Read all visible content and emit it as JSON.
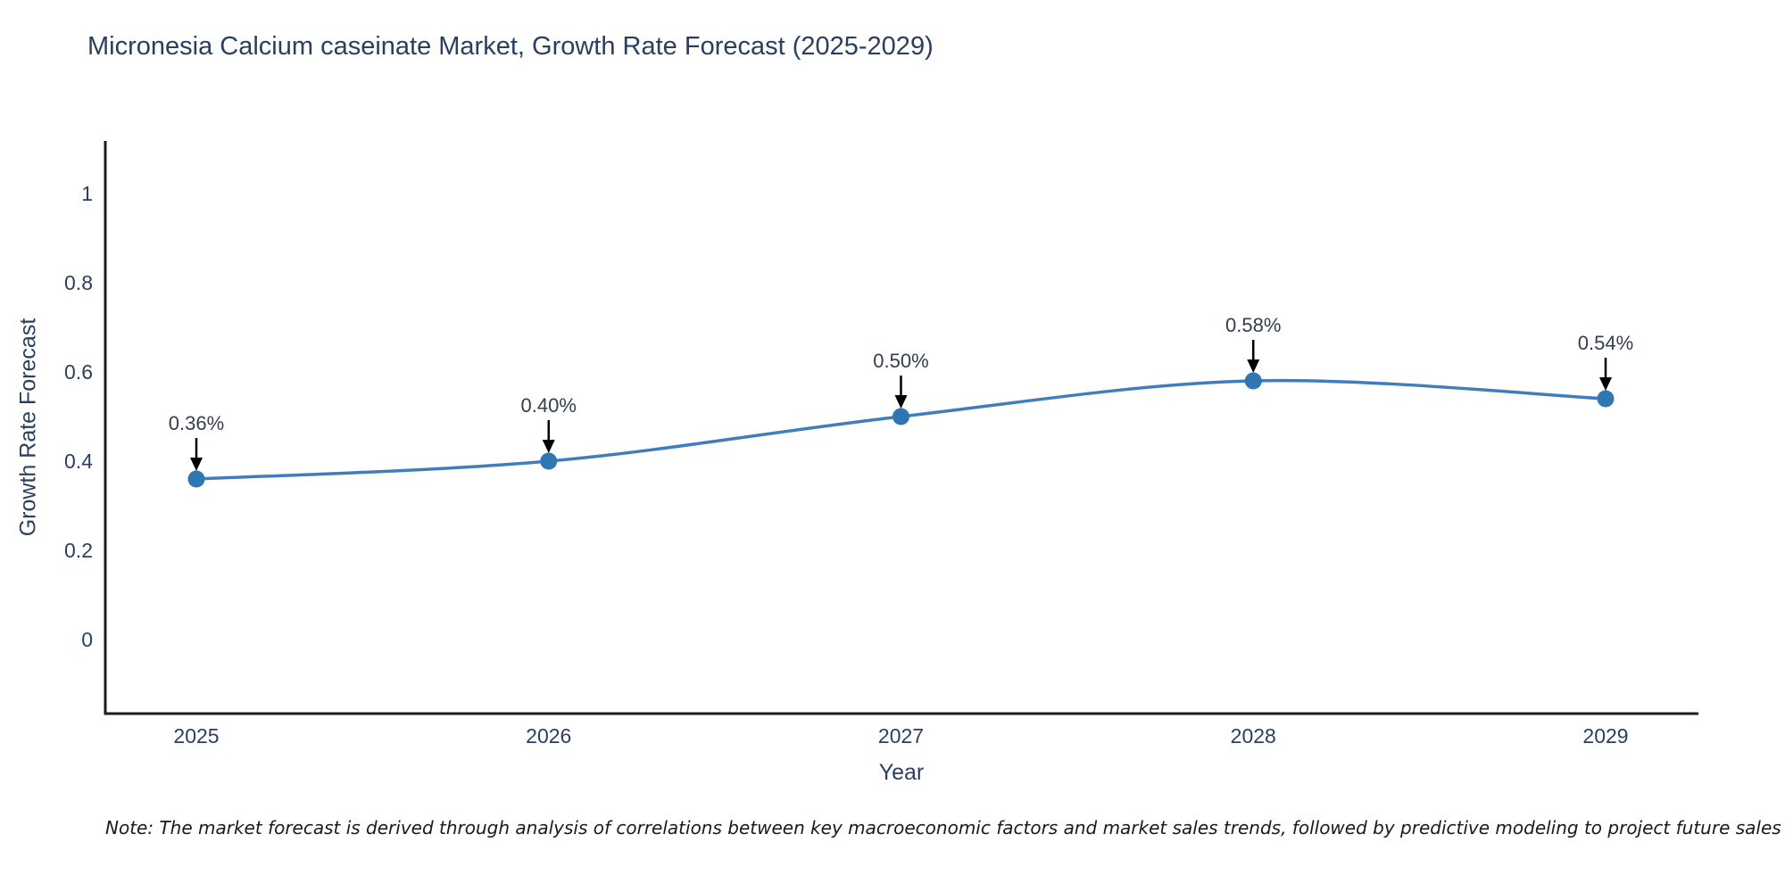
{
  "title": "Micronesia Calcium caseinate Market, Growth Rate Forecast (2025-2029)",
  "note": "Note: The market forecast is derived through analysis of correlations between key macroeconomic factors and market sales trends, followed by predictive modeling to project future sales",
  "colors": {
    "line": "#3f7dbc",
    "marker": "#2e76b4",
    "axis": "#1c1c20",
    "text": "#2a3f5f",
    "annotation_arrow": "#000000"
  },
  "chart_data": {
    "type": "line",
    "title": "Micronesia Calcium caseinate Market, Growth Rate Forecast (2025-2029)",
    "categories": [
      "2025",
      "2026",
      "2027",
      "2028",
      "2029"
    ],
    "x": [
      2025,
      2026,
      2027,
      2028,
      2029
    ],
    "values": [
      0.36,
      0.4,
      0.5,
      0.58,
      0.54
    ],
    "point_labels": [
      "0.36%",
      "0.40%",
      "0.50%",
      "0.58%",
      "0.54%"
    ],
    "series_name": "Growth Rate Forecast",
    "xlabel": "Year",
    "ylabel": "Growth Rate Forecast",
    "yticks": [
      0,
      0.2,
      0.4,
      0.6,
      0.8,
      1
    ],
    "ytick_labels": [
      "0",
      "0.2",
      "0.4",
      "0.6",
      "0.8",
      "1"
    ],
    "ylim": [
      -0.17,
      1.12
    ],
    "xlim": [
      2024.74,
      2029.26
    ],
    "grid": false,
    "legend_position": "none",
    "line_shape": "spline",
    "markers": true,
    "annotations": "value labels with down arrows above each point"
  }
}
